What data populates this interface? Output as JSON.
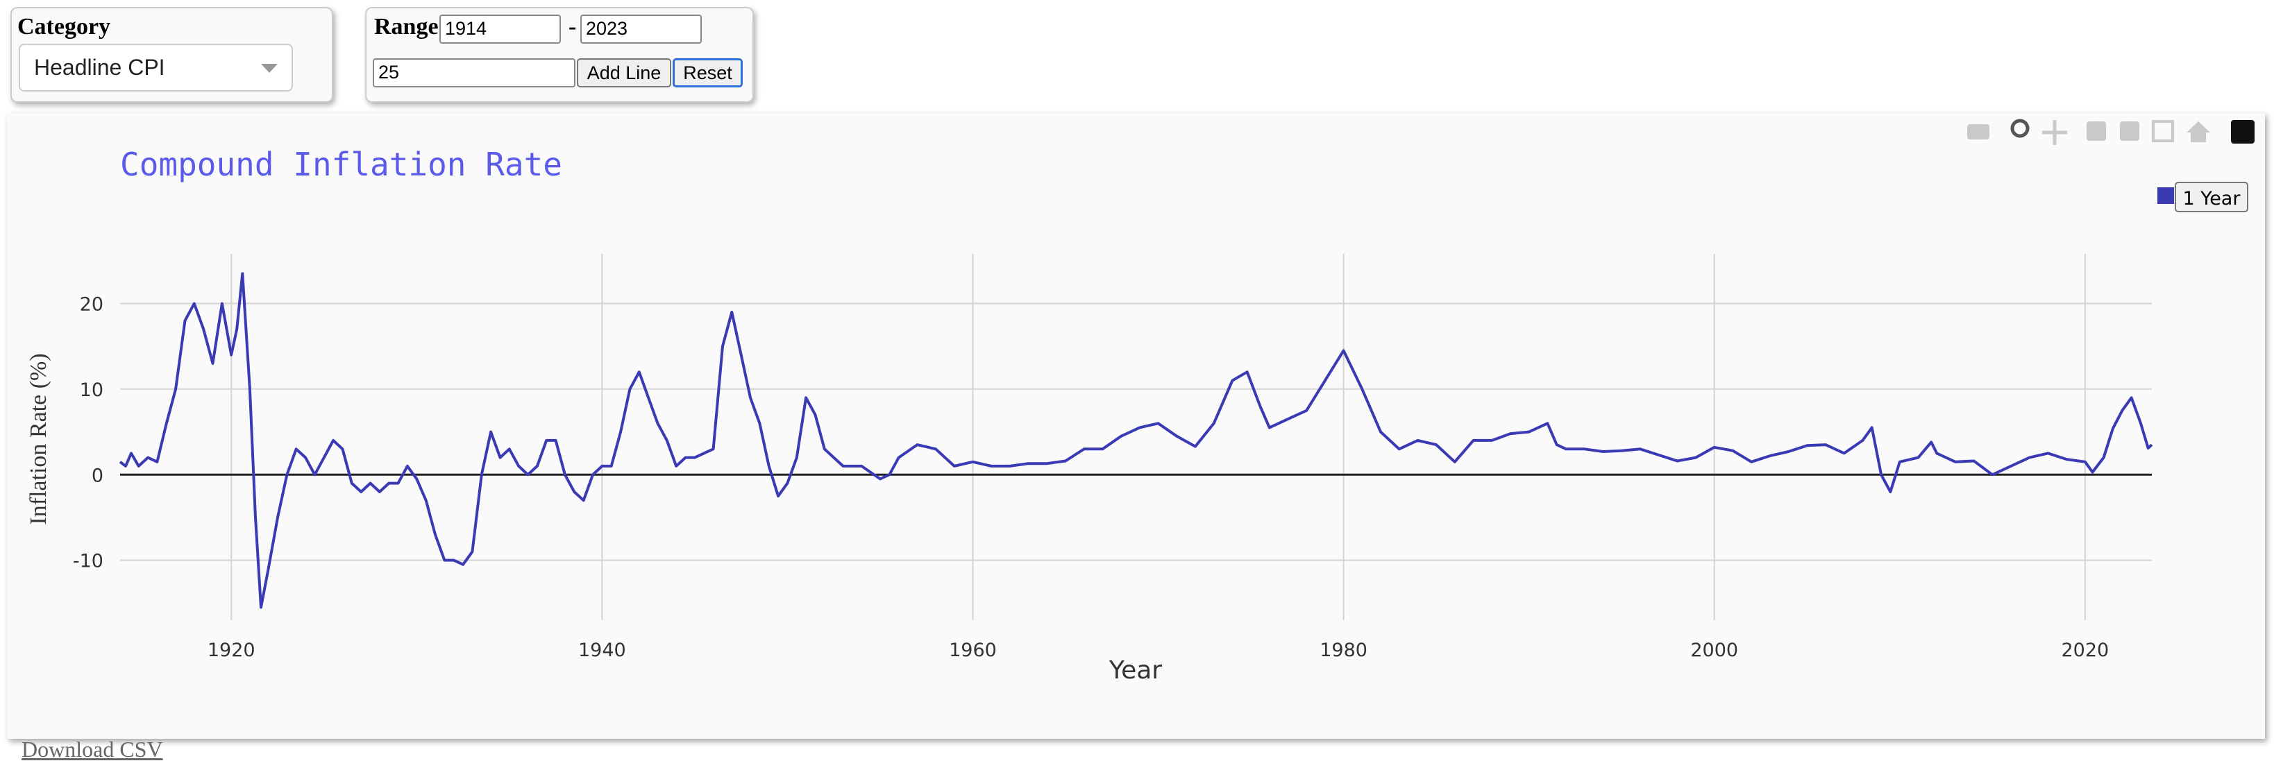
{
  "controls": {
    "category_label": "Category",
    "category_value": "Headline CPI",
    "range_label": "Range",
    "range_start": "1914",
    "range_sep": "-",
    "range_end": "2023",
    "line_input": "25",
    "add_button": "Add Line",
    "reset_button": "Reset"
  },
  "download_link": "Download CSV",
  "chart_data": {
    "type": "line",
    "title": "Compound Inflation Rate",
    "x_label": "Year",
    "y_label": "Inflation Rate (%)",
    "x": [
      1914,
      1914.3,
      1914.6,
      1915,
      1915.5,
      1916,
      1916.5,
      1917,
      1917.5,
      1918,
      1918.5,
      1919,
      1919.5,
      1920,
      1920.3,
      1920.6,
      1921,
      1921.3,
      1921.6,
      1922,
      1922.5,
      1923,
      1923.5,
      1924,
      1924.5,
      1925,
      1925.5,
      1926,
      1926.5,
      1927,
      1927.5,
      1928,
      1928.5,
      1929,
      1929.5,
      1930,
      1930.5,
      1931,
      1931.5,
      1932,
      1932.5,
      1933,
      1933.5,
      1934,
      1934.5,
      1935,
      1935.5,
      1936,
      1936.5,
      1937,
      1937.5,
      1938,
      1938.5,
      1939,
      1939.5,
      1940,
      1940.5,
      1941,
      1941.5,
      1942,
      1942.5,
      1943,
      1943.5,
      1944,
      1944.5,
      1945,
      1945.5,
      1946,
      1946.5,
      1947,
      1947.5,
      1948,
      1948.5,
      1949,
      1949.5,
      1950,
      1950.5,
      1951,
      1951.5,
      1952,
      1952.5,
      1953,
      1954,
      1955,
      1955.5,
      1956,
      1957,
      1958,
      1959,
      1960,
      1961,
      1962,
      1963,
      1964,
      1965,
      1966,
      1967,
      1968,
      1969,
      1970,
      1971,
      1972,
      1973,
      1974,
      1974.8,
      1975.5,
      1976,
      1977,
      1978,
      1979,
      1980,
      1981,
      1982,
      1983,
      1984,
      1985,
      1986,
      1987,
      1988,
      1989,
      1990,
      1991,
      1991.5,
      1992,
      1993,
      1994,
      1995,
      1996,
      1997,
      1998,
      1999,
      2000,
      2001,
      2002,
      2003,
      2004,
      2005,
      2006,
      2007,
      2008,
      2008.5,
      2009,
      2009.5,
      2010,
      2011,
      2011.7,
      2012,
      2013,
      2014,
      2015,
      2016,
      2017,
      2018,
      2019,
      2020,
      2020.4,
      2021,
      2021.5,
      2022,
      2022.5,
      2023,
      2023.4,
      2023.6
    ],
    "series": [
      {
        "name": "1 Year",
        "color": "#3a3ab4",
        "values": [
          1.5,
          1,
          2.5,
          1,
          2,
          1.5,
          6,
          10,
          18,
          20,
          17,
          13,
          20,
          14,
          17,
          23.5,
          10,
          -5,
          -15.5,
          -11,
          -5,
          0,
          3,
          2,
          0,
          2,
          4,
          3,
          -1,
          -2,
          -1,
          -2,
          -1,
          -1,
          1,
          -0.5,
          -3,
          -7,
          -10,
          -10,
          -10.5,
          -9,
          0,
          5,
          2,
          3,
          1,
          0,
          1,
          4,
          4,
          0,
          -2,
          -3,
          0,
          1,
          1,
          5,
          10,
          12,
          9,
          6,
          4,
          1,
          2,
          2,
          2.5,
          3,
          15,
          19,
          14,
          9,
          6,
          1,
          -2.5,
          -1,
          2,
          9,
          7,
          3,
          2,
          1,
          1,
          -0.5,
          0,
          2,
          3.5,
          3,
          1,
          1.5,
          1,
          1,
          1.3,
          1.3,
          1.6,
          3,
          3,
          4.5,
          5.5,
          6,
          4.5,
          3.3,
          6,
          11,
          12,
          8,
          5.5,
          6.5,
          7.5,
          11,
          14.5,
          10,
          5,
          3,
          4,
          3.5,
          1.5,
          4,
          4,
          4.8,
          5,
          6,
          3.5,
          3,
          3,
          2.7,
          2.8,
          3,
          2.3,
          1.6,
          2,
          3.2,
          2.8,
          1.5,
          2.2,
          2.7,
          3.4,
          3.5,
          2.5,
          4,
          5.5,
          0,
          -2,
          1.5,
          2,
          3.8,
          2.5,
          1.5,
          1.6,
          0,
          1,
          2,
          2.5,
          1.8,
          1.5,
          0.3,
          2,
          5.4,
          7.5,
          9,
          6,
          3.1,
          3.5
        ]
      }
    ],
    "xlim": [
      1914,
      2023.6
    ],
    "xticks": [
      1920,
      1940,
      1960,
      1980,
      2000,
      2020
    ],
    "ylim": [
      -17,
      25.8
    ],
    "yticks": [
      -10,
      0,
      10,
      20
    ],
    "grid": true,
    "legend": "top-right"
  }
}
